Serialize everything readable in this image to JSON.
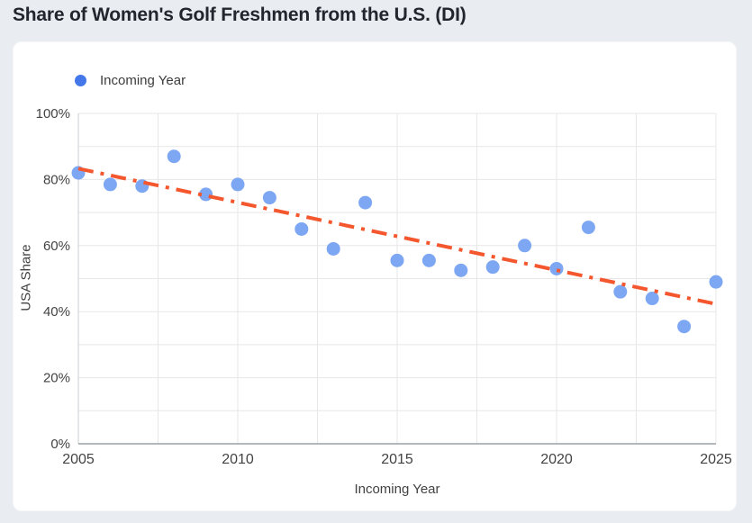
{
  "page": {
    "title": "Share of Women's Golf Freshmen from the U.S. (DI)",
    "background_color": "#e9edf1",
    "card_color": "#ffffff"
  },
  "legend": {
    "label": "Incoming Year",
    "marker_color": "#4478EA"
  },
  "chart_data": {
    "type": "scatter",
    "title": "Share of Women's Golf Freshmen from the U.S. (DI)",
    "xlabel": "Incoming Year",
    "ylabel": "USA Share",
    "xlim": [
      2005,
      2025
    ],
    "ylim": [
      0,
      100
    ],
    "x_ticks": [
      2005,
      2010,
      2015,
      2020,
      2025
    ],
    "y_tick_values": [
      0,
      20,
      40,
      60,
      80,
      100
    ],
    "y_tick_labels": [
      "0%",
      "20%",
      "40%",
      "60%",
      "80%",
      "100%"
    ],
    "grid": {
      "on": true,
      "x_step_years": 2.5,
      "y_step_pct": 10,
      "color": "#e7e7e7"
    },
    "legend_position": "top-left",
    "series": [
      {
        "name": "Incoming Year",
        "type": "scatter",
        "color": "#7DA7F3",
        "point_radius": 7.5,
        "x": [
          2005,
          2006,
          2007,
          2008,
          2009,
          2010,
          2011,
          2012,
          2013,
          2014,
          2015,
          2016,
          2017,
          2018,
          2019,
          2020,
          2021,
          2022,
          2023,
          2024,
          2025
        ],
        "values": [
          82,
          78.5,
          78,
          87,
          75.5,
          78.5,
          74.5,
          65,
          59,
          73,
          55.5,
          55.5,
          52.5,
          53.5,
          60,
          53,
          65.5,
          46,
          44,
          35.5,
          49
        ]
      },
      {
        "name": "Trendline",
        "type": "line",
        "style": "dash-dot",
        "color": "#F4572E",
        "width": 4,
        "x": [
          2005,
          2025
        ],
        "values": [
          83.3,
          42.3
        ]
      }
    ]
  }
}
